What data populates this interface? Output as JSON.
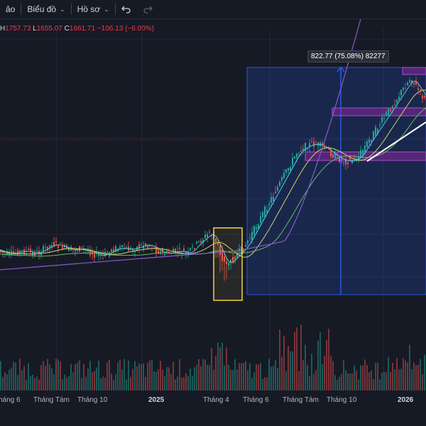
{
  "toolbar": {
    "item1": "ảo",
    "chart_label": "Biểu đồ",
    "profile_label": "Hồ sơ",
    "undo_icon": "undo-icon",
    "redo_icon": "redo-icon"
  },
  "ohlc": {
    "h_label": "H",
    "h_value": "1757.73",
    "l_label": "L",
    "l_value": "1655.07",
    "c_label": "C",
    "c_value": "1661.71",
    "change": "−106.13 (−6.00%)"
  },
  "measure": {
    "text": "822.77 (75.08%) 82277"
  },
  "x_axis": [
    {
      "label": "háng 6",
      "bold": false
    },
    {
      "label": "Tháng Tám",
      "bold": false
    },
    {
      "label": "Tháng 10",
      "bold": false
    },
    {
      "label": "2025",
      "bold": true
    },
    {
      "label": "Tháng 4",
      "bold": false
    },
    {
      "label": "Tháng 6",
      "bold": false
    },
    {
      "label": "Tháng Tám",
      "bold": false
    },
    {
      "label": "Tháng 10",
      "bold": false
    },
    {
      "label": "2026",
      "bold": true
    }
  ],
  "colors": {
    "background": "#161a25",
    "up": "#26a69a",
    "down": "#ef5350",
    "measure_fill": "#2962ff",
    "highlight_box": "#f5d33a",
    "resistance_zone": "#9c27b0",
    "trendline": "#ffffff",
    "ma_cyan": "#4dd0e1",
    "ma_yellow": "#d4d46a",
    "ma_green": "#66bb6a",
    "ma_purple": "#7e57c2"
  }
}
